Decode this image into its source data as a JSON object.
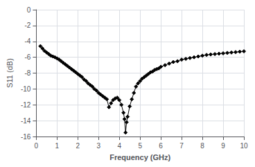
{
  "chart_data": {
    "type": "line",
    "xlabel": "Frequency (GHz)",
    "ylabel": "S11 (dB)",
    "xlim": [
      0,
      10
    ],
    "ylim": [
      -16,
      0
    ],
    "xticks": [
      0,
      1,
      2,
      3,
      4,
      5,
      6,
      7,
      8,
      9,
      10
    ],
    "yticks": [
      0,
      -2,
      -4,
      -6,
      -8,
      -10,
      -12,
      -14,
      -16
    ],
    "color": "#000000",
    "marker": "diamond",
    "grid": true,
    "x": [
      0.2,
      0.3,
      0.4,
      0.5,
      0.6,
      0.7,
      0.8,
      0.9,
      1.0,
      1.1,
      1.2,
      1.3,
      1.4,
      1.5,
      1.6,
      1.7,
      1.8,
      1.9,
      2.0,
      2.1,
      2.2,
      2.3,
      2.4,
      2.5,
      2.6,
      2.7,
      2.8,
      2.9,
      3.0,
      3.1,
      3.2,
      3.3,
      3.4,
      3.5,
      3.6,
      3.7,
      3.8,
      3.9,
      4.0,
      4.1,
      4.2,
      4.25,
      4.3,
      4.35,
      4.4,
      4.5,
      4.6,
      4.7,
      4.8,
      4.9,
      5.0,
      5.1,
      5.2,
      5.3,
      5.4,
      5.5,
      5.6,
      5.7,
      5.8,
      5.9,
      6.0,
      6.2,
      6.4,
      6.6,
      6.8,
      7.0,
      7.2,
      7.4,
      7.6,
      7.8,
      8.0,
      8.2,
      8.4,
      8.6,
      8.8,
      9.0,
      9.2,
      9.4,
      9.6,
      9.8,
      10.0
    ],
    "values": [
      -4.6,
      -4.9,
      -5.2,
      -5.4,
      -5.6,
      -5.8,
      -5.9,
      -6.0,
      -6.15,
      -6.3,
      -6.5,
      -6.7,
      -6.9,
      -7.1,
      -7.3,
      -7.5,
      -7.7,
      -7.9,
      -8.1,
      -8.3,
      -8.5,
      -8.8,
      -9.0,
      -9.3,
      -9.5,
      -9.7,
      -10.0,
      -10.2,
      -10.5,
      -10.7,
      -10.9,
      -11.1,
      -11.3,
      -12.3,
      -11.8,
      -11.4,
      -11.2,
      -11.1,
      -11.4,
      -12.0,
      -13.0,
      -13.8,
      -15.5,
      -14.2,
      -13.5,
      -12.2,
      -11.3,
      -10.5,
      -9.7,
      -9.3,
      -9.0,
      -8.7,
      -8.5,
      -8.3,
      -8.1,
      -7.9,
      -7.8,
      -7.6,
      -7.5,
      -7.4,
      -7.2,
      -7.0,
      -6.8,
      -6.6,
      -6.5,
      -6.3,
      -6.2,
      -6.1,
      -6.0,
      -5.9,
      -5.8,
      -5.7,
      -5.65,
      -5.6,
      -5.55,
      -5.5,
      -5.45,
      -5.4,
      -5.35,
      -5.3,
      -5.25
    ]
  }
}
